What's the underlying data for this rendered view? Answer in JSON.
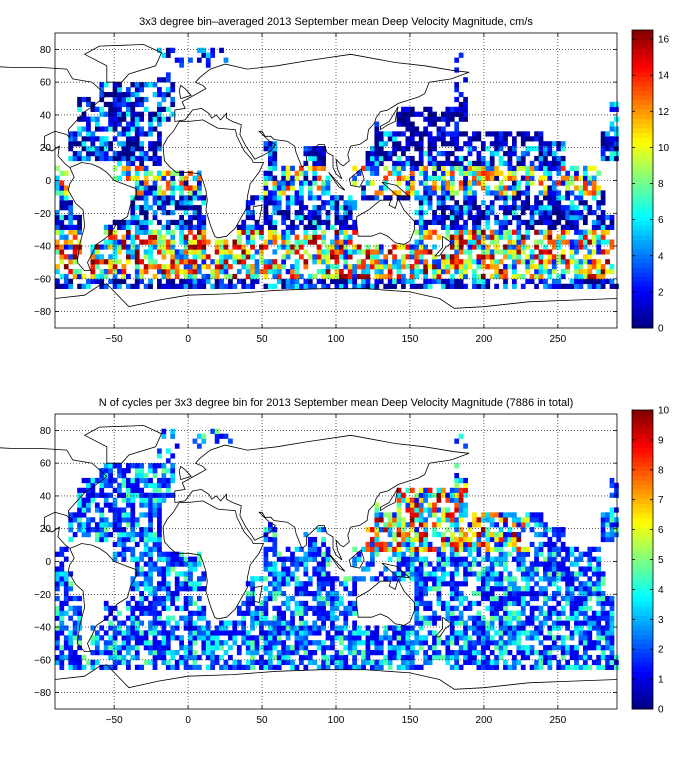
{
  "chart_data": [
    {
      "type": "heatmap",
      "title": "3x3 degree bin–averaged 2013 September mean Deep Velocity Magnitude, cm/s",
      "xlim": [
        -90,
        290
      ],
      "ylim": [
        -90,
        90
      ],
      "xticks": [
        -50,
        0,
        50,
        100,
        150,
        200,
        250
      ],
      "yticks": [
        80,
        60,
        40,
        20,
        0,
        -20,
        -40,
        -60,
        -80
      ],
      "grid": "dotted",
      "colorbar": {
        "min": 0,
        "max": 16.5,
        "ticks": [
          0,
          2,
          4,
          6,
          8,
          10,
          12,
          14,
          16
        ],
        "colormap": "jet"
      },
      "bin_size_deg": 3
    },
    {
      "type": "heatmap",
      "title": "N of cycles per 3x3 degree bin for 2013 September mean Deep Velocity Magnitude (7886 in total)",
      "xlim": [
        -90,
        290
      ],
      "ylim": [
        -90,
        90
      ],
      "xticks": [
        -50,
        0,
        50,
        100,
        150,
        200,
        250
      ],
      "yticks": [
        80,
        60,
        40,
        20,
        0,
        -20,
        -40,
        -60,
        -80
      ],
      "grid": "dotted",
      "colorbar": {
        "min": 0,
        "max": 10,
        "ticks": [
          0,
          1,
          2,
          3,
          4,
          5,
          6,
          7,
          8,
          9,
          10
        ],
        "colormap": "jet"
      },
      "bin_size_deg": 3
    }
  ]
}
